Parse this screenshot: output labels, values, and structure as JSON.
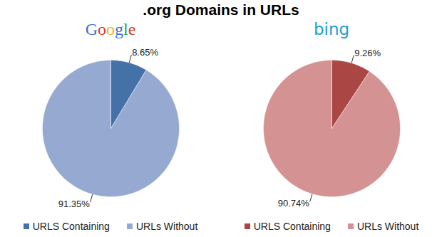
{
  "title": ".org Domains in URLs",
  "chart_data": [
    {
      "type": "pie",
      "title": "Google",
      "categories": [
        "URLS Containing",
        "URLs Without"
      ],
      "values": [
        8.65,
        91.35
      ],
      "value_labels": [
        "8.65%",
        "91.35%"
      ],
      "colors": [
        "#4472a8",
        "#95a9d1"
      ],
      "data_labels": true,
      "legend": "bottom"
    },
    {
      "type": "pie",
      "title": "bing",
      "categories": [
        "URLS Containing",
        "URLs Without"
      ],
      "values": [
        9.26,
        90.74
      ],
      "value_labels": [
        "9.26%",
        "90.74%"
      ],
      "colors": [
        "#aa4643",
        "#d49292"
      ],
      "data_labels": true,
      "legend": "bottom"
    }
  ]
}
